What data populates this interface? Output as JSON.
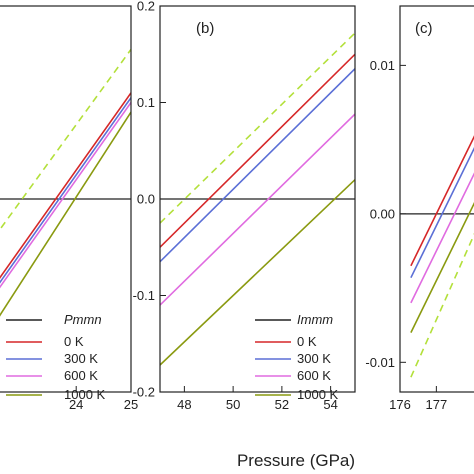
{
  "xlabel": "Pressure (GPa)",
  "chart_data": [
    {
      "type": "line",
      "panel_label": "",
      "xlim": [
        22.5,
        25.0
      ],
      "ylim": [
        -0.2,
        0.2
      ],
      "xticks": [
        24,
        25
      ],
      "xtick_labels": [
        "24",
        "25"
      ],
      "yticks": [],
      "ytick_labels": [],
      "zero_line": 0,
      "legend": {
        "title": "Pmmn",
        "placement": "bottom-left",
        "entries": [
          "0 K",
          "300 K",
          "600 K",
          "1000 K"
        ]
      },
      "series": [
        {
          "name": "0 K",
          "color": "#d62728",
          "dashed": false,
          "x": [
            22.5,
            25.0
          ],
          "y": [
            -0.09,
            0.11
          ]
        },
        {
          "name": "300 K",
          "color": "#5b6fd6",
          "dashed": false,
          "x": [
            22.5,
            25.0
          ],
          "y": [
            -0.095,
            0.105
          ]
        },
        {
          "name": "600 K",
          "color": "#e06be0",
          "dashed": false,
          "x": [
            22.5,
            25.0
          ],
          "y": [
            -0.1,
            0.1
          ]
        },
        {
          "name": "1000 K",
          "color": "#8a9a10",
          "dashed": false,
          "x": [
            22.5,
            25.0
          ],
          "y": [
            -0.13,
            0.09
          ]
        },
        {
          "name": "",
          "color": "#b3e03a",
          "dashed": true,
          "x": [
            22.5,
            25.0
          ],
          "y": [
            -0.04,
            0.155
          ]
        }
      ]
    },
    {
      "type": "line",
      "panel_label": "(b)",
      "xlim": [
        47,
        55
      ],
      "ylim": [
        -0.2,
        0.2
      ],
      "xticks": [
        48,
        50,
        52,
        54
      ],
      "xtick_labels": [
        "48",
        "50",
        "52",
        "54"
      ],
      "yticks": [
        -0.2,
        -0.1,
        0.0,
        0.1,
        0.2
      ],
      "ytick_labels": [
        "-0.2",
        "-0.1",
        "0.0",
        "0.1",
        "0.2"
      ],
      "zero_line": 0,
      "legend": {
        "title": "Immm",
        "placement": "bottom-right",
        "entries": [
          "0 K",
          "300 K",
          "600 K",
          "1000 K"
        ]
      },
      "series": [
        {
          "name": "0 K",
          "color": "#d62728",
          "dashed": false,
          "x": [
            47,
            55
          ],
          "y": [
            -0.05,
            0.15
          ]
        },
        {
          "name": "300 K",
          "color": "#5b6fd6",
          "dashed": false,
          "x": [
            47,
            55
          ],
          "y": [
            -0.065,
            0.135
          ]
        },
        {
          "name": "600 K",
          "color": "#e06be0",
          "dashed": false,
          "x": [
            47,
            55
          ],
          "y": [
            -0.11,
            0.088
          ]
        },
        {
          "name": "1000 K",
          "color": "#8a9a10",
          "dashed": false,
          "x": [
            47,
            55
          ],
          "y": [
            -0.172,
            0.02
          ]
        },
        {
          "name": "",
          "color": "#b3e03a",
          "dashed": true,
          "x": [
            47,
            55
          ],
          "y": [
            -0.025,
            0.172
          ]
        }
      ]
    },
    {
      "type": "line",
      "panel_label": "(c)",
      "xlim": [
        176,
        178.2
      ],
      "ylim": [
        -0.012,
        0.014
      ],
      "xticks": [
        176,
        177
      ],
      "xtick_labels": [
        "176",
        "177"
      ],
      "yticks": [
        -0.01,
        0.0,
        0.01
      ],
      "ytick_labels": [
        "-0.01",
        "0.00",
        "0.01"
      ],
      "zero_line": 0,
      "legend": {
        "title": "",
        "placement": "bottom-right",
        "entries": []
      },
      "series": [
        {
          "name": "0 K",
          "color": "#d62728",
          "dashed": false,
          "x": [
            176.3,
            178.2
          ],
          "y": [
            -0.0035,
            0.006
          ]
        },
        {
          "name": "300 K",
          "color": "#5b6fd6",
          "dashed": false,
          "x": [
            176.3,
            178.2
          ],
          "y": [
            -0.0043,
            0.0052
          ]
        },
        {
          "name": "600 K",
          "color": "#e06be0",
          "dashed": false,
          "x": [
            176.3,
            178.2
          ],
          "y": [
            -0.006,
            0.0035
          ]
        },
        {
          "name": "1000 K",
          "color": "#8a9a10",
          "dashed": false,
          "x": [
            176.3,
            178.2
          ],
          "y": [
            -0.008,
            0.0015
          ]
        },
        {
          "name": "",
          "color": "#b3e03a",
          "dashed": true,
          "x": [
            176.3,
            178.2
          ],
          "y": [
            -0.011,
            -0.0005
          ]
        }
      ]
    }
  ]
}
